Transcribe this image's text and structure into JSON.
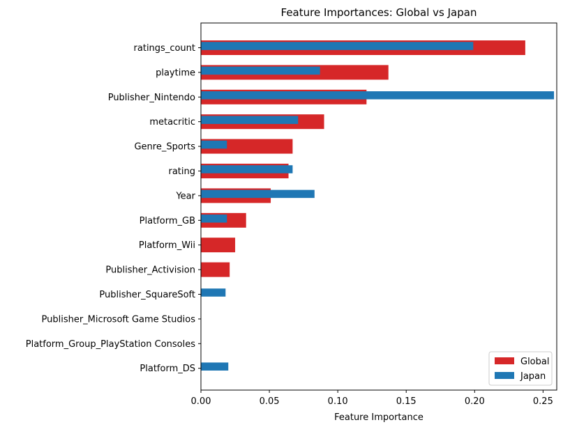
{
  "chart_data": {
    "type": "bar",
    "orientation": "horizontal",
    "title": "Feature Importances: Global vs Japan",
    "xlabel": "Feature Importance",
    "ylabel": "",
    "xlim": [
      0,
      0.26
    ],
    "xticks": [
      "0.00",
      "0.05",
      "0.10",
      "0.15",
      "0.20",
      "0.25"
    ],
    "categories": [
      "ratings_count",
      "playtime",
      "Publisher_Nintendo",
      "metacritic",
      "Genre_Sports",
      "rating",
      "Year",
      "Platform_GB",
      "Platform_Wii",
      "Publisher_Activision",
      "Publisher_SquareSoft",
      "Publisher_Microsoft Game Studios",
      "Platform_Group_PlayStation Consoles",
      "Platform_DS"
    ],
    "series": [
      {
        "name": "Global",
        "color": "#d62728",
        "values": [
          0.237,
          0.137,
          0.121,
          0.09,
          0.067,
          0.064,
          0.051,
          0.033,
          0.025,
          0.021,
          0.0,
          0.0,
          0.0,
          0.0
        ]
      },
      {
        "name": "Japan",
        "color": "#1f77b4",
        "values": [
          0.199,
          0.087,
          0.258,
          0.071,
          0.019,
          0.067,
          0.083,
          0.019,
          0.0,
          0.0,
          0.018,
          0.0,
          0.0,
          0.02
        ]
      }
    ],
    "legend": "lower right",
    "grid": false
  }
}
